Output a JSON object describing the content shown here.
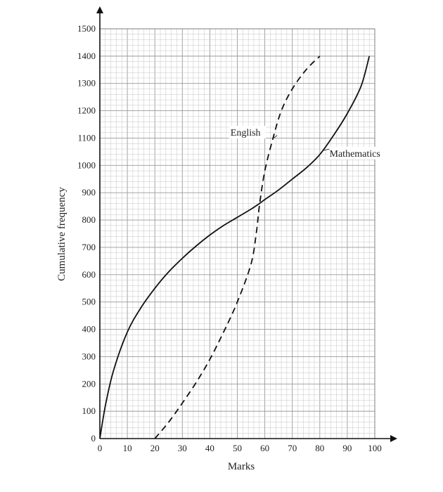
{
  "chart_data": {
    "type": "line",
    "title": "",
    "xlabel": "Marks",
    "ylabel": "Cumulative frequency",
    "xlim": [
      0,
      100
    ],
    "ylim": [
      0,
      1500
    ],
    "x_ticks": [
      0,
      10,
      20,
      30,
      40,
      50,
      60,
      70,
      80,
      90,
      100
    ],
    "y_ticks": [
      0,
      100,
      200,
      300,
      400,
      500,
      600,
      700,
      800,
      900,
      1000,
      1100,
      1200,
      1300,
      1400,
      1500
    ],
    "grid": true,
    "series": [
      {
        "name": "English",
        "style": "dashed",
        "color": "#111111",
        "points": [
          [
            20,
            0
          ],
          [
            25,
            60
          ],
          [
            30,
            130
          ],
          [
            35,
            205
          ],
          [
            40,
            290
          ],
          [
            45,
            390
          ],
          [
            50,
            500
          ],
          [
            55,
            640
          ],
          [
            57,
            760
          ],
          [
            58,
            850
          ],
          [
            60,
            980
          ],
          [
            63,
            1100
          ],
          [
            66,
            1200
          ],
          [
            70,
            1280
          ],
          [
            75,
            1350
          ],
          [
            80,
            1400
          ]
        ]
      },
      {
        "name": "Mathematics",
        "style": "solid",
        "color": "#111111",
        "points": [
          [
            0,
            0
          ],
          [
            2,
            120
          ],
          [
            5,
            250
          ],
          [
            10,
            390
          ],
          [
            15,
            480
          ],
          [
            20,
            550
          ],
          [
            25,
            610
          ],
          [
            30,
            660
          ],
          [
            35,
            705
          ],
          [
            40,
            745
          ],
          [
            45,
            780
          ],
          [
            50,
            810
          ],
          [
            55,
            840
          ],
          [
            58,
            860
          ],
          [
            60,
            875
          ],
          [
            65,
            910
          ],
          [
            70,
            950
          ],
          [
            75,
            990
          ],
          [
            80,
            1040
          ],
          [
            85,
            1110
          ],
          [
            90,
            1190
          ],
          [
            95,
            1290
          ],
          [
            98,
            1400
          ]
        ]
      }
    ]
  }
}
